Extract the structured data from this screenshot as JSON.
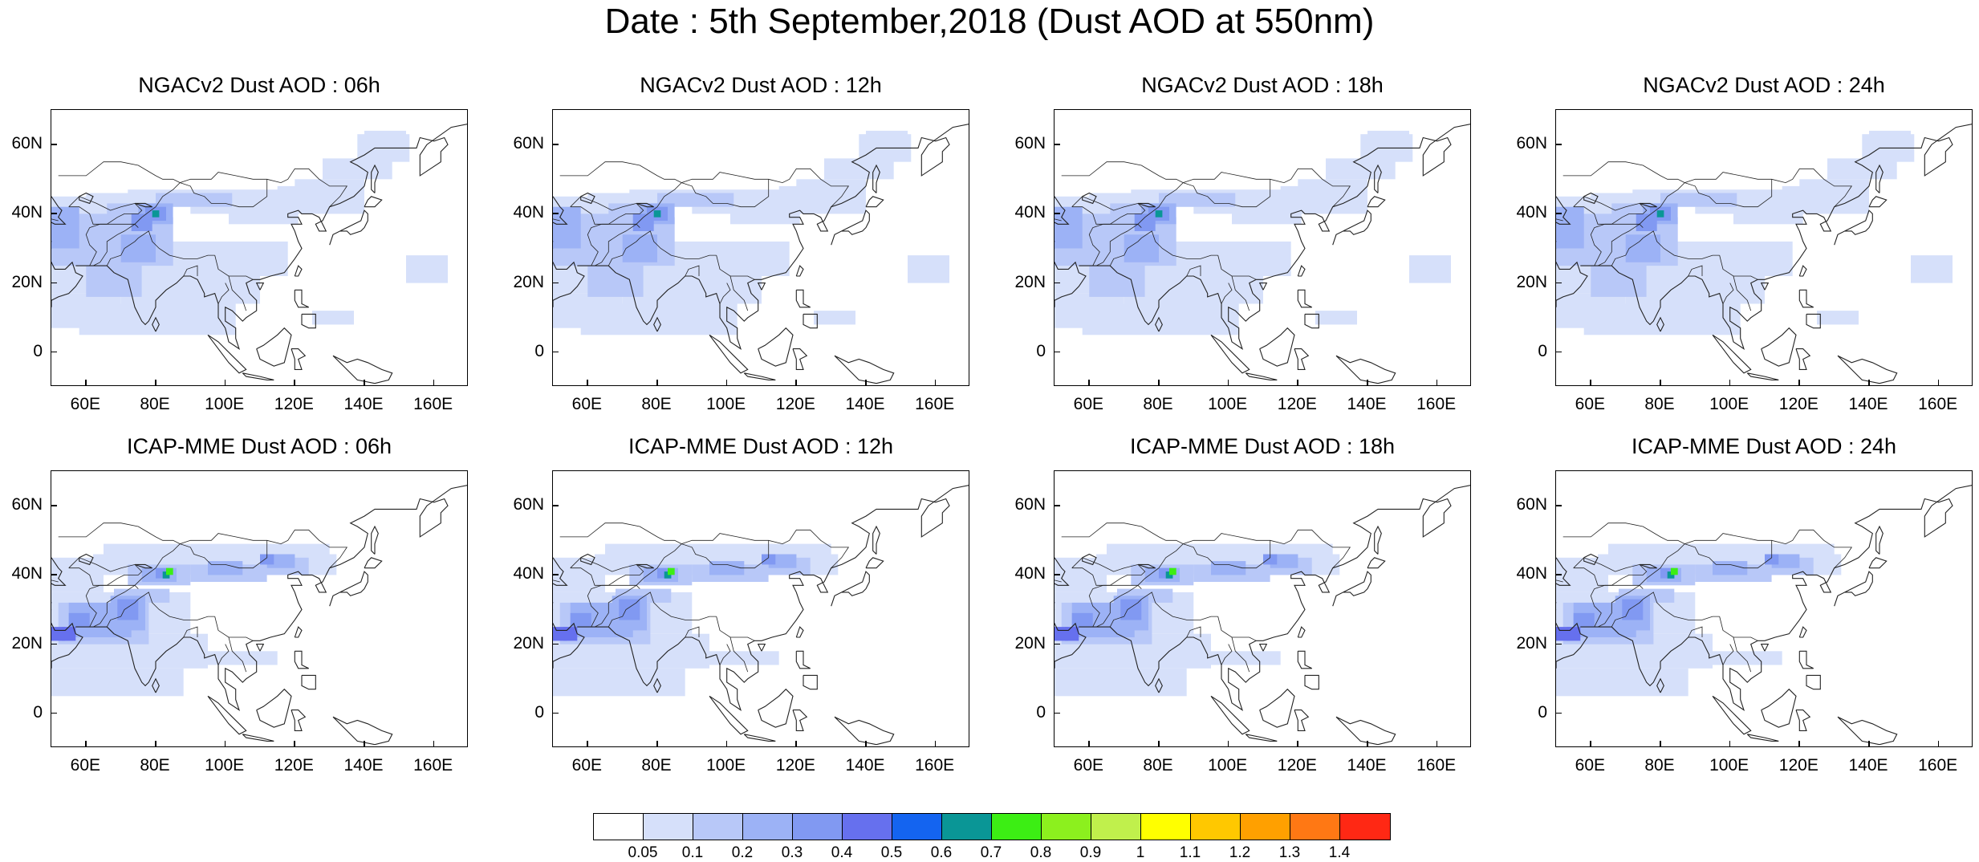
{
  "title": "Date : 5th September,2018 (Dust AOD at 550nm)",
  "axes": {
    "lat_ticks": [
      "60N",
      "40N",
      "20N",
      "0"
    ],
    "lon_ticks": [
      "60E",
      "80E",
      "100E",
      "120E",
      "140E",
      "160E"
    ]
  },
  "panels": [
    {
      "title": "NGACv2 Dust AOD : 06h"
    },
    {
      "title": "NGACv2 Dust AOD : 12h"
    },
    {
      "title": "NGACv2 Dust AOD : 18h"
    },
    {
      "title": "NGACv2 Dust AOD : 24h"
    },
    {
      "title": "ICAP-MME Dust AOD : 06h"
    },
    {
      "title": "ICAP-MME Dust AOD : 12h"
    },
    {
      "title": "ICAP-MME Dust AOD : 18h"
    },
    {
      "title": "ICAP-MME Dust AOD : 24h"
    }
  ],
  "colorbar": {
    "colors": [
      "#ffffff",
      "#d6e0fa",
      "#b8c8f8",
      "#9cb2f6",
      "#8199f2",
      "#6670ee",
      "#1464f0",
      "#0a9696",
      "#3cee14",
      "#8cf01e",
      "#c0f04c",
      "#ffff00",
      "#ffc800",
      "#ffa000",
      "#ff7814",
      "#ff2814"
    ],
    "labels": [
      "0.05",
      "0.1",
      "0.2",
      "0.3",
      "0.4",
      "0.5",
      "0.6",
      "0.7",
      "0.8",
      "0.9",
      "1",
      "1.1",
      "1.2",
      "1.3",
      "1.4"
    ]
  }
}
